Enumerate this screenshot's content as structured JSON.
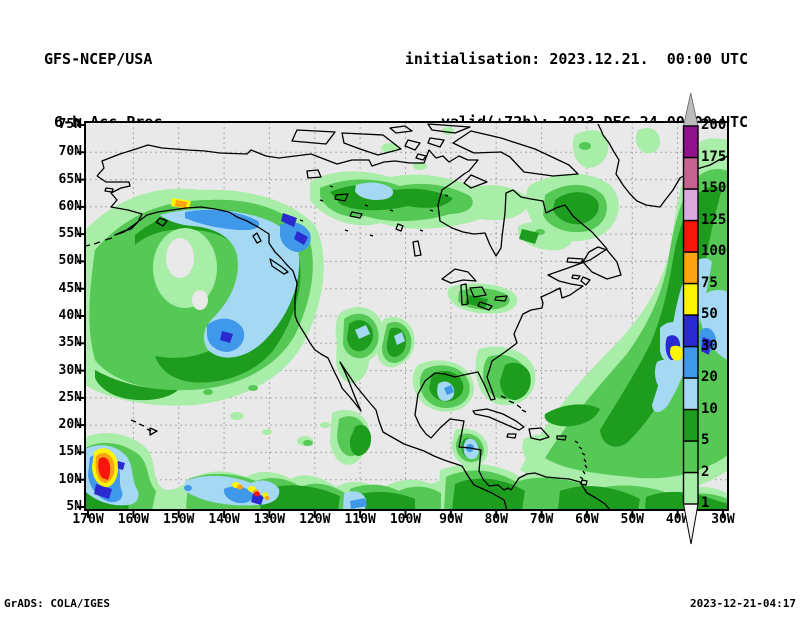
{
  "header": {
    "model": "GFS-NCEP/USA",
    "field": "6-h Acc.Prec.",
    "init_line": "initialisation: 2023.12.21.  00:00 UTC",
    "valid_line": "valid(+72h): 2023.DEC.24 00:00 UTC"
  },
  "map": {
    "background": "#e9e9e9",
    "grid_color": "#aaaaaa",
    "coast_color": "#000000",
    "axes": {
      "lat_ticks": [
        "5N",
        "10N",
        "15N",
        "20N",
        "25N",
        "30N",
        "35N",
        "40N",
        "45N",
        "50N",
        "55N",
        "60N",
        "65N",
        "70N",
        "75N"
      ],
      "lon_ticks": [
        "170W",
        "160W",
        "150W",
        "140W",
        "130W",
        "120W",
        "110W",
        "100W",
        "90W",
        "80W",
        "70W",
        "60W",
        "50W",
        "40W",
        "30W"
      ]
    }
  },
  "colorbar": {
    "levels": [
      "1",
      "2",
      "5",
      "10",
      "20",
      "30",
      "50",
      "75",
      "100",
      "125",
      "150",
      "175",
      "200"
    ],
    "colors_low_to_high": [
      "#a8eda8",
      "#55c855",
      "#1e9c1e",
      "#a5d9f3",
      "#3f98e9",
      "#2a2ad0",
      "#fcf403",
      "#fca312",
      "#f7150c",
      "#d9aade",
      "#c4638f",
      "#8f118c"
    ],
    "above_max_color": "#bcbcbc",
    "below_min_color": "#f5f5f5"
  },
  "footer": {
    "credit": "GrADS: COLA/IGES",
    "timestamp": "2023-12-21-04:17"
  }
}
